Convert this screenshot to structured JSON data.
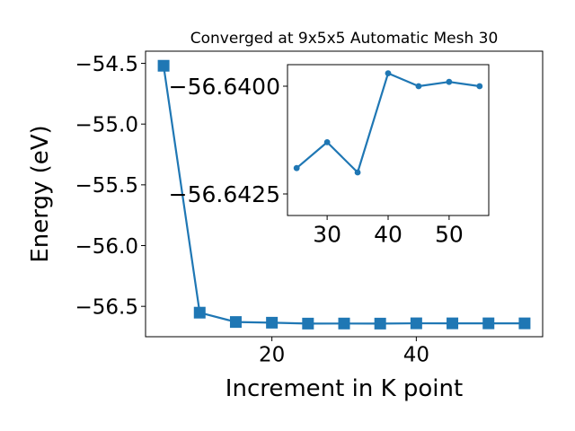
{
  "chart_data": [
    {
      "type": "line",
      "title": "Converged at 9x5x5 Automatic Mesh 30",
      "xlabel": "Increment in K point",
      "ylabel": "Energy (eV)",
      "xlim": [
        2.5,
        57.5
      ],
      "ylim": [
        -56.75,
        -54.4
      ],
      "xticks": [
        20,
        40
      ],
      "yticks": [
        -56.5,
        -56.0,
        -55.5,
        -55.0,
        -54.5
      ],
      "ytick_labels": [
        "−56.5",
        "−56.0",
        "−55.5",
        "−55.0",
        "−54.5"
      ],
      "grid": false,
      "marker": "square",
      "color": "#1f77b4",
      "series": [
        {
          "x": [
            5,
            10,
            15,
            20,
            25,
            30,
            35,
            40,
            45,
            50,
            55
          ],
          "y": [
            -54.52,
            -56.552,
            -56.6289,
            -56.6346,
            -56.6419,
            -56.6413,
            -56.642,
            -56.6397,
            -56.64,
            -56.6399,
            -56.64
          ]
        }
      ]
    },
    {
      "type": "line",
      "title": "",
      "xlabel": "",
      "ylabel": "",
      "xlim": [
        23.5,
        56.5
      ],
      "ylim": [
        -56.643,
        -56.6395
      ],
      "xticks": [
        30,
        40,
        50
      ],
      "yticks": [
        -56.6425,
        -56.64
      ],
      "ytick_labels": [
        "−56.6425",
        "−56.6400"
      ],
      "grid": false,
      "marker": "circle",
      "color": "#1f77b4",
      "series": [
        {
          "x": [
            25,
            30,
            35,
            40,
            45,
            50,
            55
          ],
          "y": [
            -56.6419,
            -56.6413,
            -56.642,
            -56.6397,
            -56.64,
            -56.6399,
            -56.64
          ]
        }
      ]
    }
  ]
}
